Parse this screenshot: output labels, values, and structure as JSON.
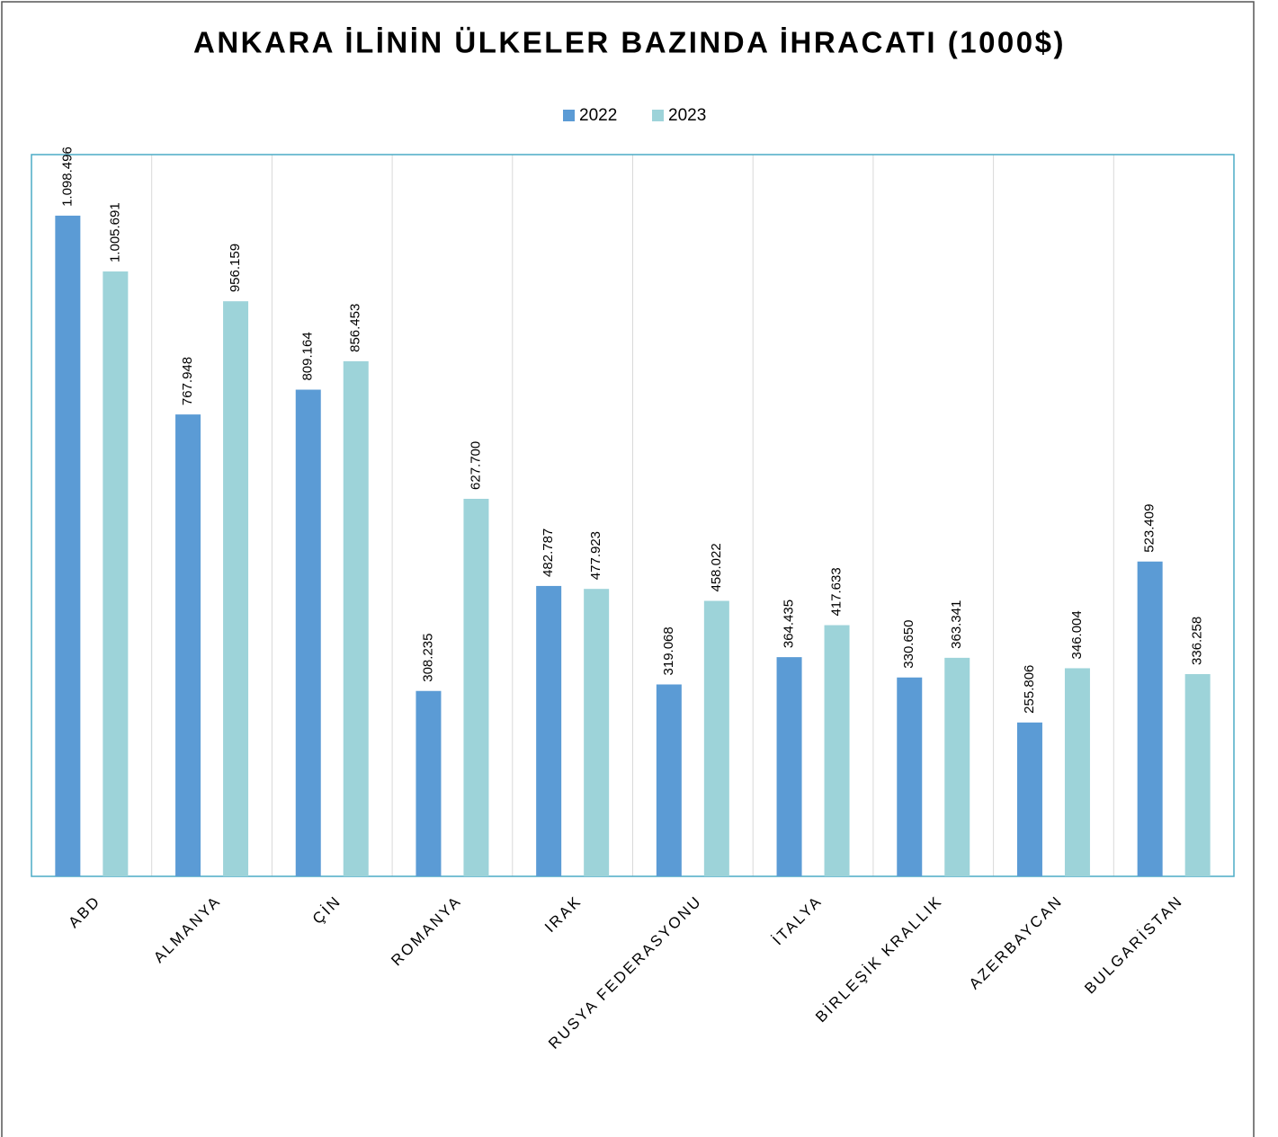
{
  "chart_data": {
    "type": "bar",
    "title": "ANKARA İLİNİN ÜLKELER BAZINDA İHRACATI (1000$)",
    "categories": [
      "ABD",
      "ALMANYA",
      "ÇİN",
      "ROMANYA",
      "IRAK",
      "RUSYA FEDERASYONU",
      "İTALYA",
      "BİRLEŞİK KRALLIK",
      "AZERBAYCAN",
      "BULGARİSTAN"
    ],
    "series": [
      {
        "name": "2022",
        "color": "#5b9bd5",
        "values": [
          1098496,
          767948,
          809164,
          308235,
          482787,
          319068,
          364435,
          330650,
          255806,
          523409
        ],
        "value_labels": [
          "1.098.496",
          "767.948",
          "809.164",
          "308.235",
          "482.787",
          "319.068",
          "364.435",
          "330.650",
          "255.806",
          "523.409"
        ]
      },
      {
        "name": "2023",
        "color": "#9dd3d9",
        "values": [
          1005691,
          956159,
          856453,
          627700,
          477923,
          458022,
          417633,
          363341,
          346004,
          336258
        ],
        "value_labels": [
          "1.005.691",
          "956.159",
          "856.453",
          "627.700",
          "477.923",
          "458.022",
          "417.633",
          "363.341",
          "346.004",
          "336.258"
        ]
      }
    ],
    "ylim": [
      0,
      1200000
    ],
    "legend": "top"
  }
}
